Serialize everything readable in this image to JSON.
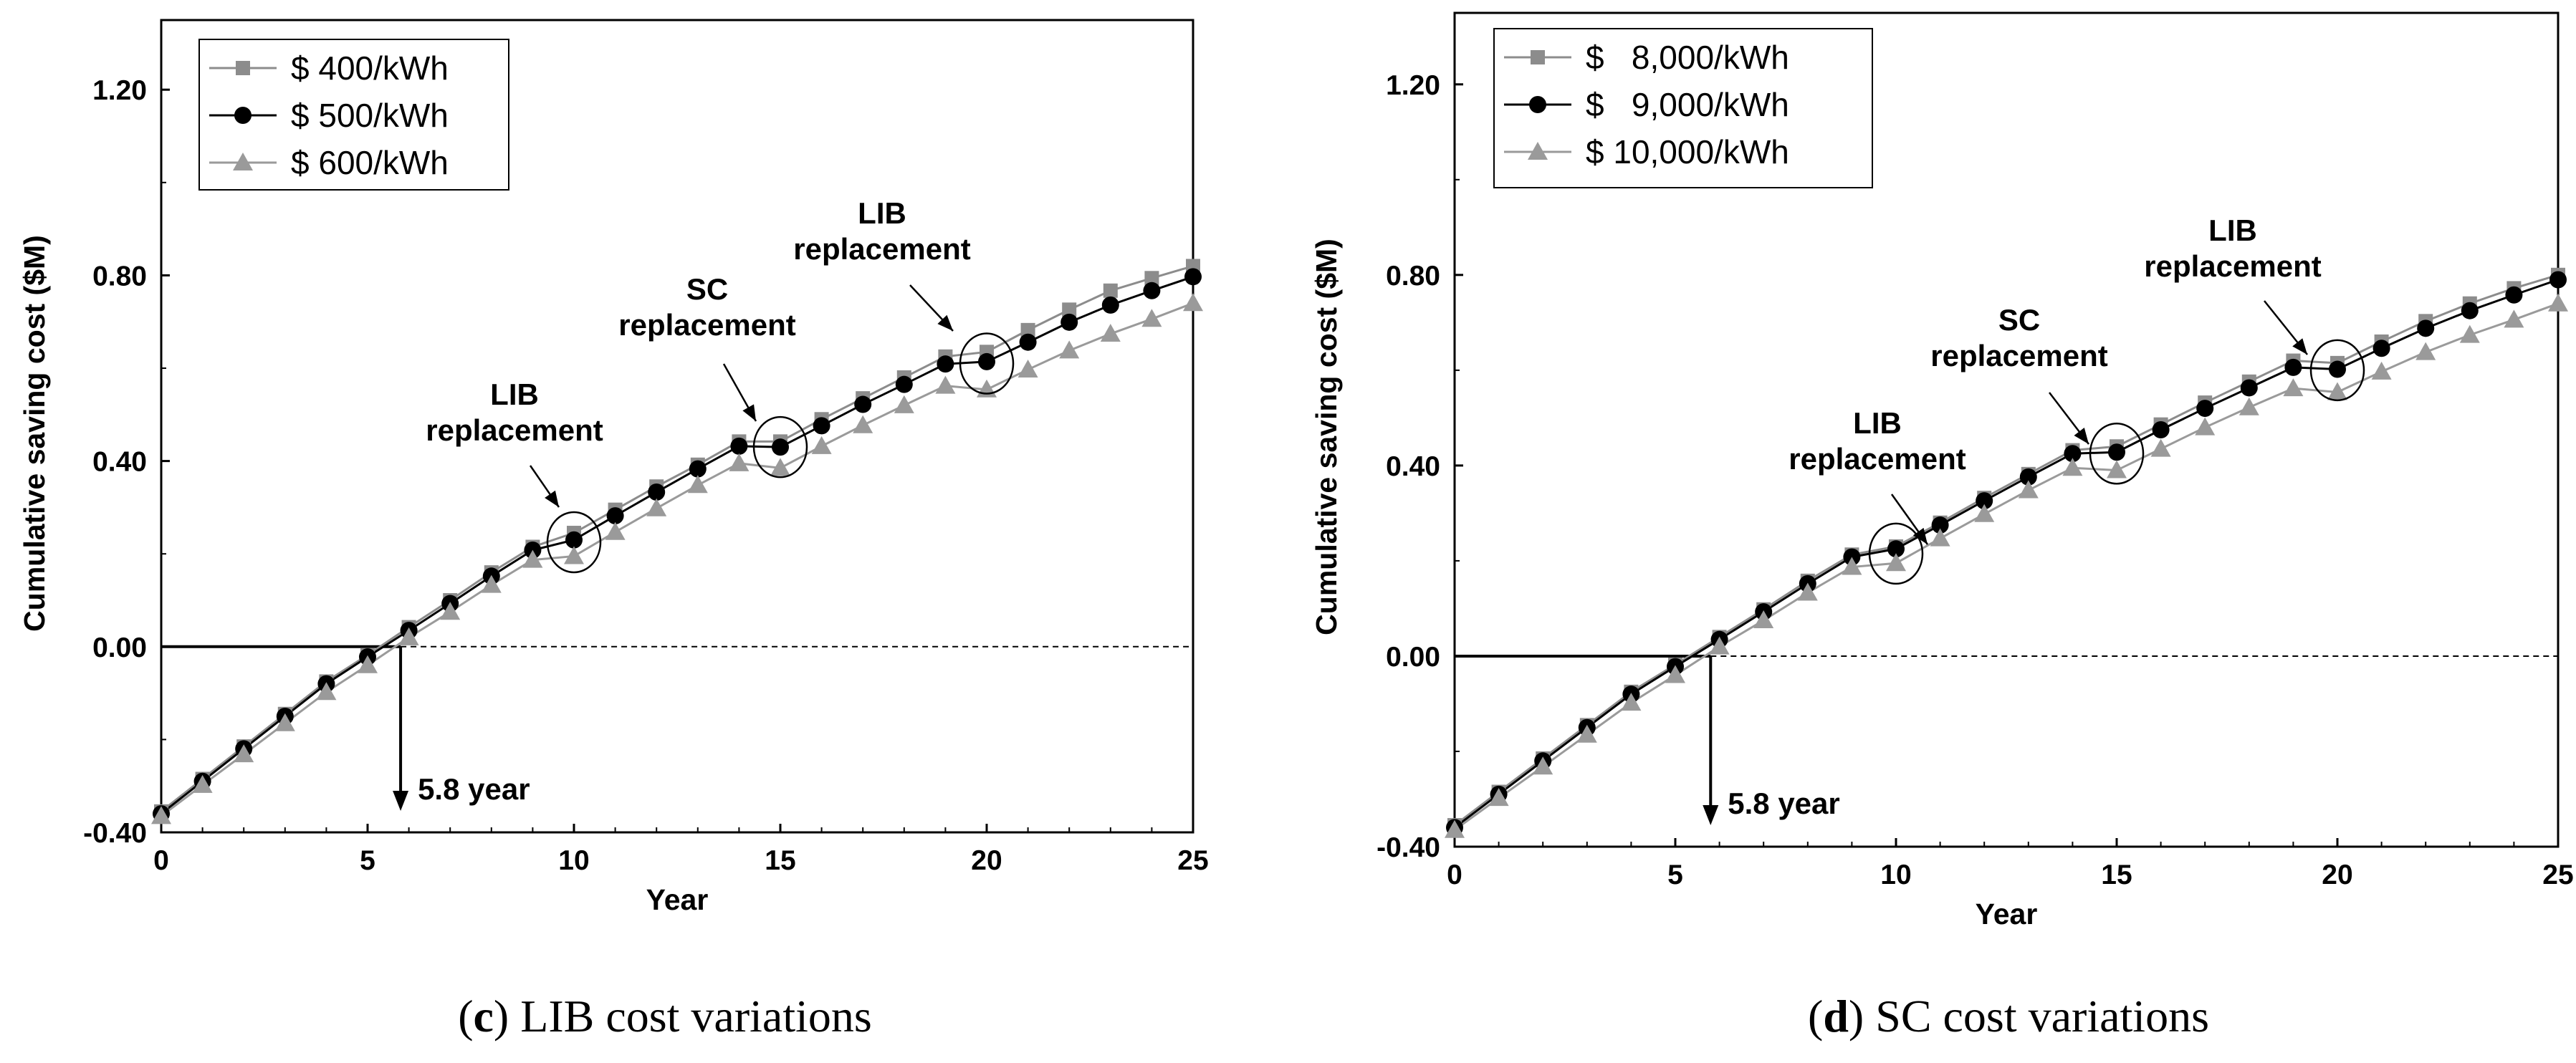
{
  "chart_data": [
    {
      "id": "c",
      "type": "line",
      "caption_letter": "c",
      "caption_text": " LIB cost variations",
      "xlabel": "Year",
      "ylabel": "Cumulative saving cost ($M)",
      "xlim": [
        0,
        25
      ],
      "ylim": [
        -0.4,
        1.35
      ],
      "xticks": [
        {
          "v": 0,
          "label": "0"
        },
        {
          "v": 5,
          "label": "5"
        },
        {
          "v": 10,
          "label": "10"
        },
        {
          "v": 15,
          "label": "15"
        },
        {
          "v": 20,
          "label": "20"
        },
        {
          "v": 25,
          "label": "25"
        }
      ],
      "yticks": [
        {
          "v": -0.4,
          "label": "-0.40"
        },
        {
          "v": 0,
          "label": "0.00"
        },
        {
          "v": 0.4,
          "label": "0.40"
        },
        {
          "v": 0.8,
          "label": "0.80"
        },
        {
          "v": 1.2,
          "label": "1.20"
        }
      ],
      "x": [
        0,
        1,
        2,
        3,
        4,
        5,
        6,
        7,
        8,
        9,
        10,
        11,
        12,
        13,
        14,
        15,
        16,
        17,
        18,
        19,
        20,
        21,
        22,
        23,
        24,
        25
      ],
      "series": [
        {
          "name": "$ 400/kWh",
          "marker": "square",
          "color": "#8c8c8c",
          "values": [
            -0.355,
            -0.285,
            -0.215,
            -0.145,
            -0.075,
            -0.018,
            0.042,
            0.1,
            0.16,
            0.215,
            0.245,
            0.295,
            0.345,
            0.392,
            0.442,
            0.442,
            0.49,
            0.535,
            0.58,
            0.625,
            0.635,
            0.682,
            0.726,
            0.767,
            0.794,
            0.82
          ]
        },
        {
          "name": "$ 500/kWh",
          "marker": "circle",
          "color": "#000000",
          "values": [
            -0.36,
            -0.29,
            -0.22,
            -0.15,
            -0.08,
            -0.022,
            0.035,
            0.093,
            0.152,
            0.208,
            0.23,
            0.282,
            0.333,
            0.383,
            0.432,
            0.43,
            0.476,
            0.522,
            0.565,
            0.609,
            0.614,
            0.656,
            0.699,
            0.736,
            0.767,
            0.797
          ]
        },
        {
          "name": "$ 600/kWh",
          "marker": "triangle",
          "color": "#9a9a9a",
          "values": [
            -0.365,
            -0.298,
            -0.232,
            -0.165,
            -0.098,
            -0.04,
            0.02,
            0.075,
            0.133,
            0.187,
            0.195,
            0.247,
            0.298,
            0.348,
            0.395,
            0.385,
            0.432,
            0.477,
            0.52,
            0.562,
            0.554,
            0.597,
            0.638,
            0.674,
            0.706,
            0.74
          ]
        }
      ],
      "breakeven": {
        "x": 5.8,
        "label": "5.8 year"
      },
      "annotations": [
        {
          "line1": "LIB",
          "line2": "replacement",
          "x": 10,
          "y": 0.225
        },
        {
          "line1": "SC",
          "line2": "replacement",
          "x": 15,
          "y": 0.43
        },
        {
          "line1": "LIB",
          "line2": "replacement",
          "x": 20,
          "y": 0.61
        }
      ]
    },
    {
      "id": "d",
      "type": "line",
      "caption_letter": "d",
      "caption_text": " SC cost variations",
      "xlabel": "Year",
      "ylabel": "Cumulative saving cost ($M)",
      "xlim": [
        0,
        25
      ],
      "ylim": [
        -0.4,
        1.35
      ],
      "xticks": [
        {
          "v": 0,
          "label": "0"
        },
        {
          "v": 5,
          "label": "5"
        },
        {
          "v": 10,
          "label": "10"
        },
        {
          "v": 15,
          "label": "15"
        },
        {
          "v": 20,
          "label": "20"
        },
        {
          "v": 25,
          "label": "25"
        }
      ],
      "yticks": [
        {
          "v": -0.4,
          "label": "-0.40"
        },
        {
          "v": 0,
          "label": "0.00"
        },
        {
          "v": 0.4,
          "label": "0.40"
        },
        {
          "v": 0.8,
          "label": "0.80"
        },
        {
          "v": 1.2,
          "label": "1.20"
        }
      ],
      "x": [
        0,
        1,
        2,
        3,
        4,
        5,
        6,
        7,
        8,
        9,
        10,
        11,
        12,
        13,
        14,
        15,
        16,
        17,
        18,
        19,
        20,
        21,
        22,
        23,
        24,
        25
      ],
      "series": [
        {
          "name": "$   8,000/kWh",
          "marker": "square",
          "color": "#8c8c8c",
          "values": [
            -0.355,
            -0.285,
            -0.215,
            -0.145,
            -0.075,
            -0.018,
            0.04,
            0.098,
            0.158,
            0.213,
            0.23,
            0.28,
            0.332,
            0.382,
            0.432,
            0.44,
            0.486,
            0.532,
            0.576,
            0.62,
            0.615,
            0.66,
            0.703,
            0.74,
            0.772,
            0.8
          ]
        },
        {
          "name": "$   9,000/kWh",
          "marker": "circle",
          "color": "#000000",
          "values": [
            -0.36,
            -0.29,
            -0.22,
            -0.15,
            -0.08,
            -0.022,
            0.035,
            0.093,
            0.152,
            0.208,
            0.225,
            0.275,
            0.326,
            0.376,
            0.425,
            0.428,
            0.475,
            0.52,
            0.563,
            0.606,
            0.602,
            0.646,
            0.688,
            0.725,
            0.758,
            0.79
          ]
        },
        {
          "name": "$ 10,000/kWh",
          "marker": "triangle",
          "color": "#9a9a9a",
          "values": [
            -0.365,
            -0.298,
            -0.232,
            -0.165,
            -0.098,
            -0.04,
            0.02,
            0.075,
            0.133,
            0.187,
            0.195,
            0.247,
            0.298,
            0.348,
            0.395,
            0.39,
            0.435,
            0.48,
            0.522,
            0.562,
            0.554,
            0.597,
            0.638,
            0.674,
            0.706,
            0.74
          ]
        }
      ],
      "breakeven": {
        "x": 5.8,
        "label": "5.8 year"
      },
      "annotations": [
        {
          "line1": "LIB",
          "line2": "replacement",
          "x": 10,
          "y": 0.215
        },
        {
          "line1": "SC",
          "line2": "replacement",
          "x": 15,
          "y": 0.425
        },
        {
          "line1": "LIB",
          "line2": "replacement",
          "x": 20,
          "y": 0.6
        }
      ]
    }
  ]
}
